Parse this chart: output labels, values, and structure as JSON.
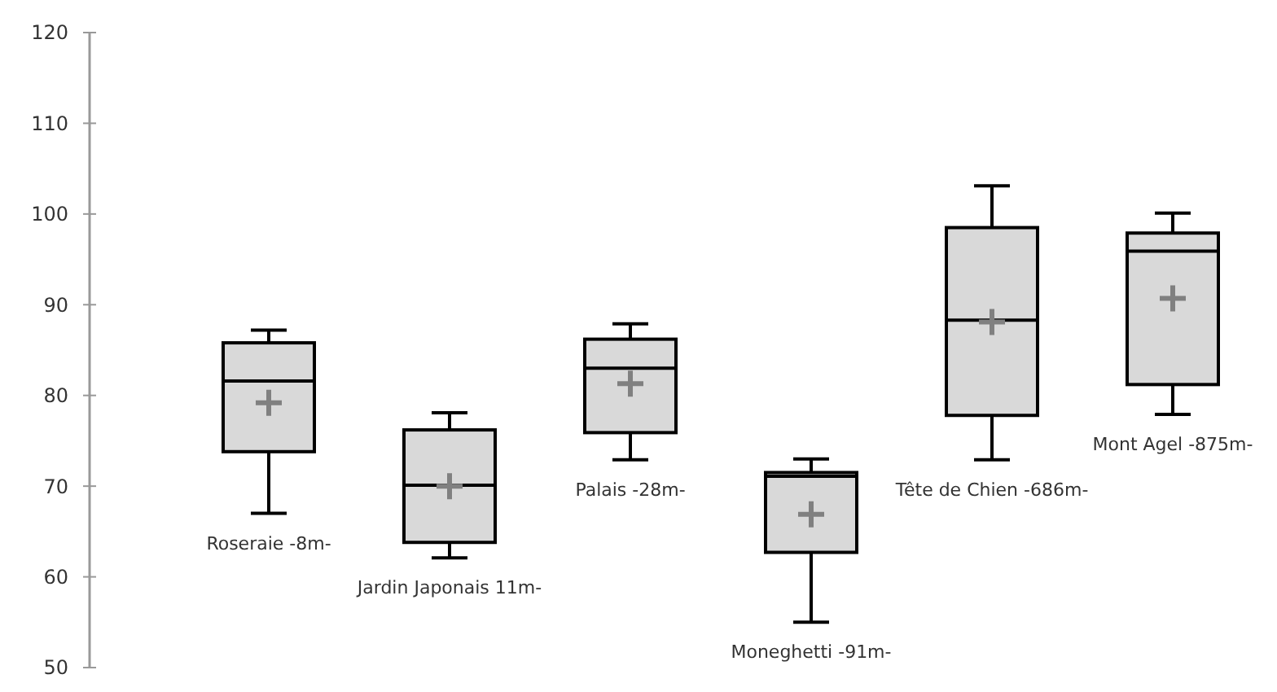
{
  "chart_data": {
    "type": "box",
    "categories": [
      "Roseraie -8m-",
      "Jardin Japonais 11m-",
      "Palais -28m-",
      "Moneghetti -91m-",
      "Tête de Chien -686m-",
      "Mont Agel -875m-"
    ],
    "boxes": [
      {
        "low": 67.0,
        "q1": 73.8,
        "median": 81.6,
        "q3": 85.8,
        "high": 87.2,
        "mean": 79.2
      },
      {
        "low": 62.1,
        "q1": 63.8,
        "median": 70.1,
        "q3": 76.2,
        "high": 78.1,
        "mean": 70.0
      },
      {
        "low": 72.9,
        "q1": 75.9,
        "median": 83.0,
        "q3": 86.2,
        "high": 87.9,
        "mean": 81.3
      },
      {
        "low": 55.0,
        "q1": 62.7,
        "median": 71.1,
        "q3": 71.5,
        "high": 73.0,
        "mean": 66.9
      },
      {
        "low": 72.9,
        "q1": 77.8,
        "median": 88.3,
        "q3": 98.5,
        "high": 103.1,
        "mean": 88.1
      },
      {
        "low": 77.9,
        "q1": 81.2,
        "median": 95.9,
        "q3": 97.9,
        "high": 100.1,
        "mean": 90.7
      }
    ],
    "color": "#d9d9d9",
    "ylim": [
      50,
      120
    ],
    "yticks": [
      50,
      60,
      70,
      80,
      90,
      100,
      110,
      120
    ],
    "grid": false
  }
}
